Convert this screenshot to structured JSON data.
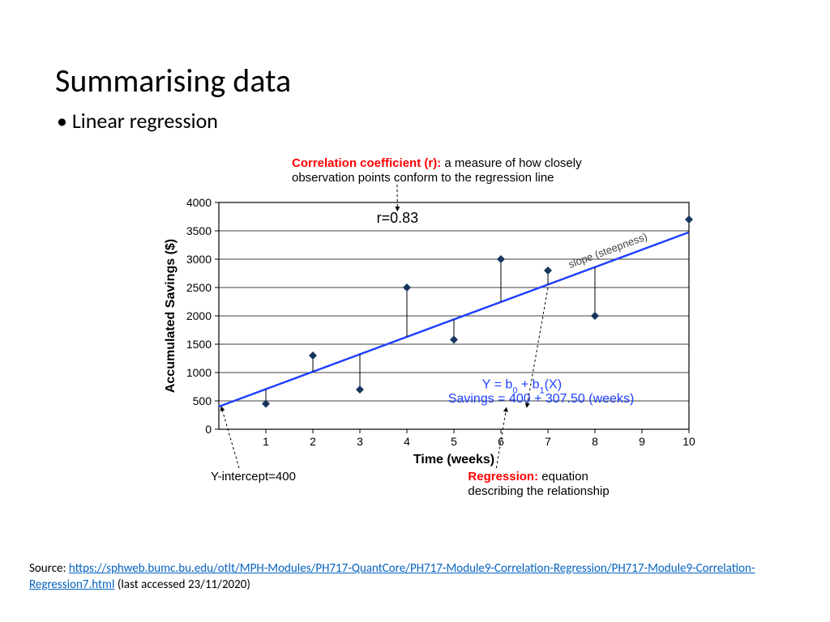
{
  "title": "Summarising data",
  "bullet": "Linear regression",
  "source": {
    "prefix": "Source: ",
    "url_text": "https://sphweb.bumc.bu.edu/otlt/MPH-Modules/PH717-QuantCore/PH717-Module9-Correlation-Regression/PH717-Module9-Correlation-Regression7.html",
    "suffix": " (last accessed 23/11/2020)"
  },
  "chart": {
    "type": "scatter-with-regression",
    "background_color": "#ffffff",
    "grid_color": "#000000",
    "plot_border_color": "#000000",
    "ylabel": "Accumulated Savings ($)",
    "xlabel": "Time (weeks)",
    "label_fontsize": 16,
    "label_font_weight": "bold",
    "tick_fontsize": 14,
    "xlim": [
      0,
      10
    ],
    "ylim": [
      0,
      4000
    ],
    "xtick_step": 1,
    "ytick_step": 500,
    "points": [
      {
        "x": 1,
        "y": 450
      },
      {
        "x": 2,
        "y": 1300
      },
      {
        "x": 3,
        "y": 700
      },
      {
        "x": 4,
        "y": 2500
      },
      {
        "x": 5,
        "y": 1580
      },
      {
        "x": 6,
        "y": 3000
      },
      {
        "x": 7,
        "y": 2800
      },
      {
        "x": 8,
        "y": 2000
      },
      {
        "x": 10,
        "y": 3700
      }
    ],
    "marker_color": "#17365d",
    "marker_size": 5,
    "regression": {
      "intercept": 400,
      "slope": 307.5,
      "line_color": "#2040ff",
      "line_width": 2.5
    },
    "annotations": {
      "r_label": "r=0.83",
      "r_label_color": "#000000",
      "r_label_fontsize": 18,
      "correlation_title": "Correlation coefficient (r):",
      "correlation_desc": " a measure of how closely observation points conform to the regression line",
      "correlation_title_color": "#ff0000",
      "correlation_desc_color": "#000000",
      "slope_label": "slope (steepness)",
      "slope_label_color": "#444444",
      "equation_generic": "Y =    b",
      "equation_generic_sub0": "0",
      "equation_generic_mid": "    +    b",
      "equation_generic_sub1": "1",
      "equation_generic_end": "(X)",
      "equation_specific": "Savings = 400 + 307.50 (weeks)",
      "equation_color": "#2040ff",
      "yintercept_label": "Y-intercept=400",
      "yintercept_color": "#000000",
      "regression_title": "Regression:",
      "regression_desc": " equation describing the relationship",
      "regression_title_color": "#ff0000"
    }
  }
}
